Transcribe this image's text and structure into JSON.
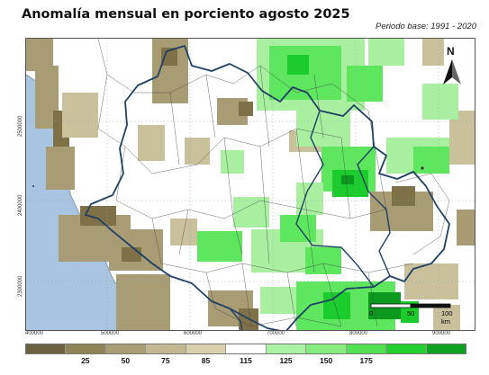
{
  "header": {
    "title": "Anomalía mensual en porciento agosto 2025",
    "subtitle": "Periodo base: 1991 - 2020"
  },
  "map": {
    "north_label": "N",
    "x_ticks": [
      "400000",
      "500000",
      "600000",
      "700000",
      "800000",
      "900000"
    ],
    "y_ticks": [
      "2500000",
      "2400000",
      "2300000"
    ],
    "scale_labels": [
      "0",
      "50",
      "100 km"
    ],
    "colors": {
      "ocean": "#a9c4e0",
      "state_border": "#1f3f63",
      "dry_strong": "#7f7147",
      "dry": "#a89c74",
      "dry_light": "#c9c09c",
      "wet_light": "#a8f0a0",
      "wet": "#5ee65e",
      "wet_strong": "#1ccc2c",
      "wet_very": "#0c9a1e"
    }
  },
  "legend": {
    "labels": [
      "25",
      "50",
      "75",
      "85",
      "115",
      "125",
      "150",
      "175"
    ],
    "colors": [
      "#6b6040",
      "#8f8458",
      "#a89d73",
      "#c3b891",
      "#d9d0ae",
      "#ffffff",
      "#aaf3a3",
      "#86ec7f",
      "#52e052",
      "#22cf2f",
      "#0ea020"
    ]
  }
}
